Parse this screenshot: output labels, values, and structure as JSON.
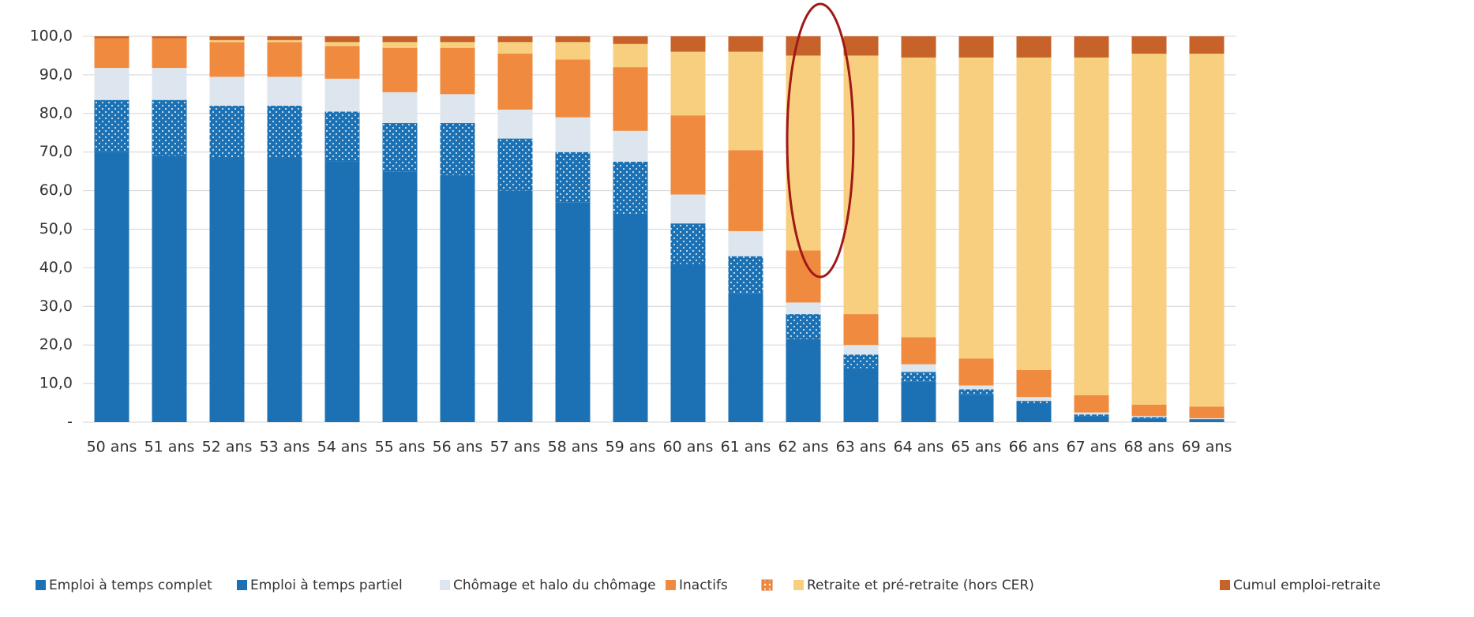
{
  "chart_data": {
    "type": "stacked_bar",
    "categories": [
      "50 ans",
      "51 ans",
      "52 ans",
      "53 ans",
      "54 ans",
      "55 ans",
      "56 ans",
      "57 ans",
      "58 ans",
      "59 ans",
      "60 ans",
      "61 ans",
      "62 ans",
      "63 ans",
      "64 ans",
      "65 ans",
      "66 ans",
      "67 ans",
      "68 ans",
      "69 ans"
    ],
    "series": [
      {
        "name": "Emploi à temps complet",
        "color": "#1b71b3",
        "values": [
          70,
          69,
          68.5,
          68.5,
          67.5,
          65,
          64,
          60,
          57,
          54,
          41,
          33.5,
          21.5,
          14,
          10.5,
          7,
          4.5,
          1.5,
          1,
          0.5
        ]
      },
      {
        "name": "Emploi à temps partiel",
        "color": "#1b71b3",
        "pattern": "dots",
        "values": [
          13.5,
          14.5,
          13.5,
          13.5,
          13,
          12.5,
          13.5,
          13.5,
          13,
          13.5,
          10.5,
          9.5,
          6.5,
          3.5,
          2.5,
          1.5,
          1,
          0.5,
          0.3,
          0.3
        ]
      },
      {
        "name": "Chômage et halo du chômage",
        "color": "#dde6ee",
        "values": [
          8.3,
          8.3,
          7.5,
          7.5,
          8.5,
          8,
          7.5,
          7.5,
          9,
          8,
          7.5,
          6.5,
          3,
          2.5,
          2,
          1,
          1,
          0.5,
          0.3,
          0.2
        ]
      },
      {
        "name": "Inactifs",
        "color": "#ef8a3e",
        "values": [
          7.7,
          7.7,
          9,
          9,
          8.5,
          11.5,
          12,
          14.5,
          15,
          16.5,
          20.5,
          21,
          13.5,
          8,
          7,
          7,
          7,
          4.5,
          2.9,
          3
        ]
      },
      {
        "name": "Retraite et pré-retraite (hors CER)",
        "color": "#f8cf7e",
        "values": [
          0,
          0,
          0.5,
          0.5,
          1,
          1.5,
          1.5,
          3,
          4.5,
          6,
          16.5,
          25.5,
          50.5,
          67,
          72.5,
          78,
          81,
          87.5,
          91,
          91.5
        ]
      },
      {
        "name": "Cumul emploi-retraite",
        "color": "#c6622a",
        "values": [
          0.5,
          0.5,
          1,
          1,
          1.5,
          1.5,
          1.5,
          1.5,
          1.5,
          2,
          4,
          4,
          5,
          5,
          5.5,
          5.5,
          5.5,
          5.5,
          4.5,
          4.5
        ]
      }
    ],
    "ylim": [
      0,
      100
    ],
    "yticks": [
      {
        "value": 0,
        "label": "-"
      },
      {
        "value": 10,
        "label": "10,0"
      },
      {
        "value": 20,
        "label": "20,0"
      },
      {
        "value": 30,
        "label": "30,0"
      },
      {
        "value": 40,
        "label": "40,0"
      },
      {
        "value": 50,
        "label": "50,0"
      },
      {
        "value": 60,
        "label": "60,0"
      },
      {
        "value": 70,
        "label": "70,0"
      },
      {
        "value": 80,
        "label": "80,0"
      },
      {
        "value": 90,
        "label": "90,0"
      },
      {
        "value": 100,
        "label": "100,0"
      }
    ],
    "grid": true,
    "legend": "bottom"
  }
}
